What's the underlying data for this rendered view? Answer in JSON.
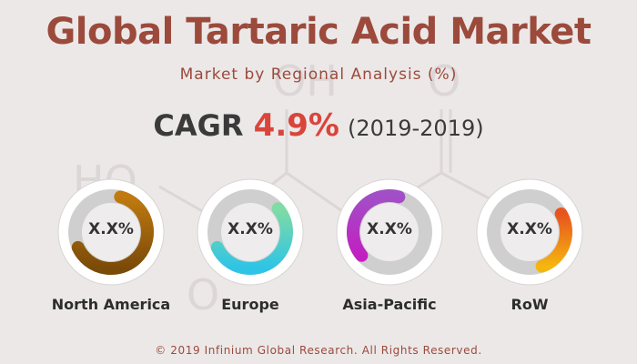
{
  "title": "Global Tartaric Acid Market",
  "subtitle": "Market by Regional Analysis (%)",
  "cagr": {
    "label": "CAGR",
    "value": "4.9%",
    "period": "(2019-2019)"
  },
  "chart_data": {
    "type": "pie",
    "categories": [
      "North America",
      "Europe",
      "Asia-Pacific",
      "RoW"
    ],
    "value_labels": [
      "X.X%",
      "X.X%",
      "X.X%",
      "X.X%"
    ],
    "colors": [
      [
        "#7a4a08",
        "#c07a10"
      ],
      [
        "#2ec4e6",
        "#7fdca4"
      ],
      [
        "#c21fc1",
        "#a24fc7"
      ],
      [
        "#f5b60f",
        "#e8541e"
      ]
    ]
  },
  "footer": "© 2019 Infinium Global Research. All Rights Reserved."
}
